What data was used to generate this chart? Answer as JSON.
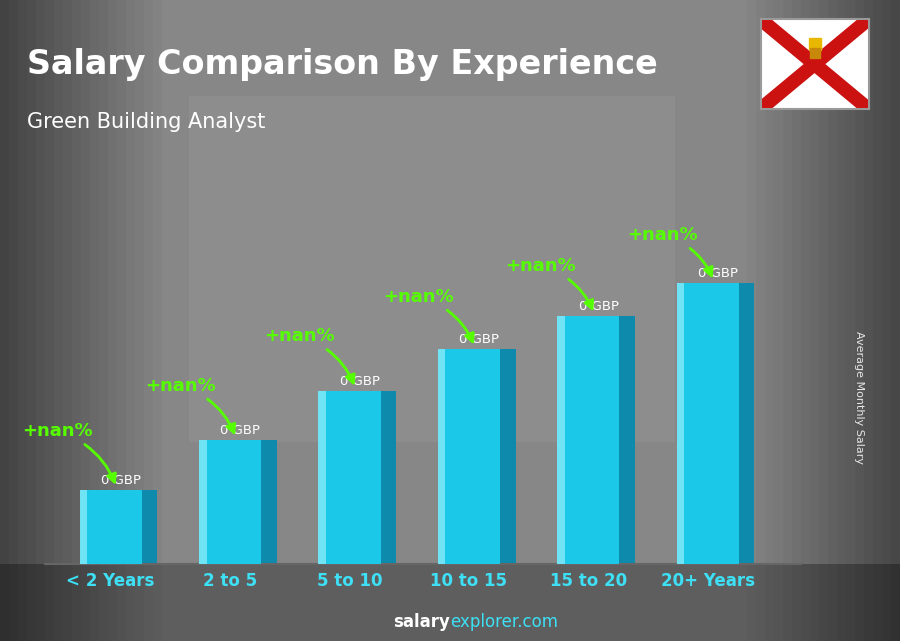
{
  "title": "Salary Comparison By Experience",
  "subtitle": "Green Building Analyst",
  "categories": [
    "< 2 Years",
    "2 to 5",
    "5 to 10",
    "10 to 15",
    "15 to 20",
    "20+ Years"
  ],
  "bar_label": "0 GBP",
  "increase_label": "+nan%",
  "bar_front_color": "#1cc8e8",
  "bar_side_color": "#0e8aad",
  "bar_top_color": "#60ddf0",
  "bar_highlight_color": "#80eaf8",
  "bg_color": "#888888",
  "title_color": "#ffffff",
  "xlabel_color": "#3de0f5",
  "footer_salary_color": "#ffffff",
  "footer_explorer_color": "#3de0f5",
  "right_label": "Average Monthly Salary",
  "green_color": "#55ff00",
  "label_color": "#ffffff",
  "bar_heights": [
    1.8,
    3.0,
    4.2,
    5.2,
    6.0,
    6.8
  ],
  "bar_width": 0.52,
  "depth": 0.13,
  "ylim_max": 9.0
}
